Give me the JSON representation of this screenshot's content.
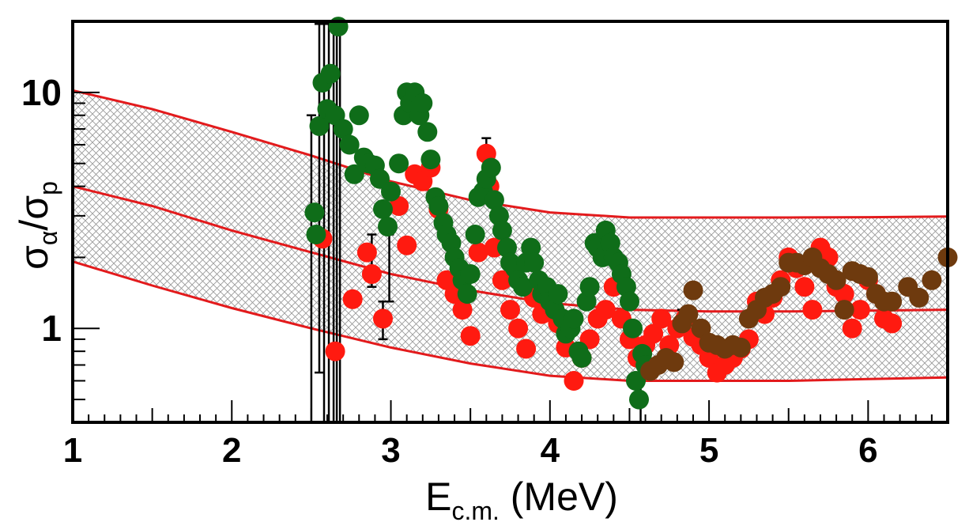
{
  "chart_data": {
    "type": "scatter",
    "xlabel": "E",
    "xlabel_subscript": "c.m.",
    "xlabel_unit": " (MeV)",
    "ylabel_symbol": "σ",
    "ylabel_num_sub": "α",
    "ylabel_slash": "/",
    "ylabel_den_sub": "p",
    "xlim": [
      1,
      6.5
    ],
    "ylim": [
      0.4,
      20
    ],
    "yscale": "log",
    "x_ticks": [
      1,
      2,
      3,
      4,
      5,
      6
    ],
    "x_tick_labels": [
      "1",
      "2",
      "3",
      "4",
      "5",
      "6"
    ],
    "y_ticks": [
      1,
      10
    ],
    "y_tick_labels": [
      "1",
      "10"
    ],
    "grid": false,
    "band": {
      "color": "#e31a1c",
      "x": [
        1.0,
        1.5,
        2.0,
        2.5,
        3.0,
        3.5,
        4.0,
        4.5,
        5.0,
        5.5,
        6.0,
        6.5
      ],
      "lower": [
        1.92,
        1.52,
        1.22,
        1.0,
        0.83,
        0.71,
        0.63,
        0.6,
        0.6,
        0.6,
        0.61,
        0.62
      ],
      "central": [
        4.0,
        3.3,
        2.6,
        2.1,
        1.7,
        1.45,
        1.28,
        1.2,
        1.18,
        1.18,
        1.19,
        1.2
      ],
      "upper": [
        10.2,
        8.5,
        6.8,
        5.4,
        4.2,
        3.5,
        3.1,
        2.95,
        2.95,
        2.95,
        2.96,
        2.98
      ]
    },
    "series": [
      {
        "name": "red data",
        "color": "#ff1a10",
        "x": [
          2.57,
          2.65,
          2.76,
          2.85,
          2.88,
          2.95,
          3.05,
          3.1,
          3.15,
          3.2,
          3.25,
          3.3,
          3.35,
          3.4,
          3.45,
          3.5,
          3.55,
          3.6,
          3.62,
          3.65,
          3.7,
          3.75,
          3.8,
          3.85,
          3.9,
          3.95,
          4.0,
          4.05,
          4.1,
          4.15,
          4.2,
          4.25,
          4.3,
          4.35,
          4.4,
          4.45,
          4.5,
          4.55,
          4.6,
          4.65,
          4.7,
          4.75,
          4.8,
          4.85,
          4.9,
          4.95,
          5.0,
          5.05,
          5.1,
          5.15,
          5.2,
          5.25,
          5.3,
          5.35,
          5.4,
          5.45,
          5.5,
          5.55,
          5.6,
          5.65,
          5.7,
          5.75,
          5.8,
          5.85,
          5.9,
          5.95,
          6.0,
          6.05,
          6.1,
          6.15
        ],
        "y": [
          2.4,
          0.8,
          1.33,
          2.1,
          1.7,
          1.1,
          3.3,
          2.25,
          4.5,
          4.2,
          4.8,
          3.2,
          1.6,
          1.4,
          1.2,
          0.93,
          2.1,
          5.5,
          4.0,
          2.2,
          1.6,
          1.2,
          1.0,
          0.82,
          1.35,
          1.15,
          1.3,
          1.05,
          0.83,
          0.6,
          0.75,
          0.9,
          1.1,
          1.2,
          1.5,
          1.1,
          0.9,
          0.75,
          0.85,
          0.95,
          1.1,
          0.85,
          1.0,
          1.1,
          0.92,
          0.85,
          0.75,
          0.65,
          0.7,
          0.75,
          0.82,
          0.9,
          1.3,
          1.15,
          1.35,
          1.6,
          2.0,
          1.8,
          1.5,
          1.2,
          2.2,
          2.0,
          1.5,
          1.4,
          1.0,
          1.2,
          1.6,
          1.4,
          1.1,
          1.05
        ]
      },
      {
        "name": "green data",
        "color": "#0f6d19",
        "x": [
          2.52,
          2.53,
          2.55,
          2.57,
          2.6,
          2.62,
          2.65,
          2.67,
          2.7,
          2.74,
          2.77,
          2.8,
          2.83,
          2.86,
          2.9,
          2.93,
          2.95,
          2.98,
          3.0,
          3.05,
          3.08,
          3.1,
          3.12,
          3.15,
          3.18,
          3.2,
          3.23,
          3.25,
          3.28,
          3.3,
          3.33,
          3.35,
          3.38,
          3.4,
          3.43,
          3.45,
          3.48,
          3.5,
          3.53,
          3.55,
          3.58,
          3.6,
          3.63,
          3.65,
          3.68,
          3.7,
          3.73,
          3.75,
          3.78,
          3.8,
          3.83,
          3.85,
          3.88,
          3.9,
          3.93,
          3.95,
          3.98,
          4.0,
          4.03,
          4.05,
          4.08,
          4.1,
          4.13,
          4.15,
          4.18,
          4.2,
          4.23,
          4.25,
          4.28,
          4.3,
          4.33,
          4.35,
          4.38,
          4.4,
          4.43,
          4.45,
          4.48,
          4.5,
          4.52,
          4.54,
          4.56,
          4.58,
          4.6
        ],
        "y": [
          3.1,
          2.5,
          7.2,
          11.0,
          8.5,
          12.0,
          8.0,
          19.0,
          7.0,
          6.0,
          4.5,
          8.0,
          5.3,
          5.0,
          4.9,
          4.3,
          3.2,
          2.7,
          3.8,
          5.0,
          8.0,
          10.0,
          9.0,
          10.0,
          8.0,
          9.0,
          6.8,
          5.2,
          3.6,
          3.3,
          2.8,
          2.5,
          2.3,
          2.0,
          1.8,
          1.6,
          1.4,
          1.7,
          2.5,
          3.6,
          3.8,
          4.3,
          4.8,
          3.5,
          3.0,
          2.6,
          2.2,
          1.9,
          1.8,
          1.6,
          1.5,
          1.9,
          2.2,
          1.9,
          1.6,
          1.4,
          1.5,
          1.3,
          1.2,
          1.4,
          1.1,
          0.95,
          1.0,
          1.1,
          0.8,
          0.75,
          1.3,
          1.5,
          2.3,
          2.2,
          2.0,
          2.6,
          2.3,
          2.0,
          1.9,
          1.7,
          1.5,
          1.3,
          1.0,
          0.6,
          0.5,
          0.78,
          0.7
        ]
      },
      {
        "name": "brown data",
        "color": "#6e3a0e",
        "x": [
          4.63,
          4.68,
          4.73,
          4.78,
          4.83,
          4.87,
          4.9,
          4.95,
          5.0,
          5.05,
          5.1,
          5.15,
          5.2,
          5.25,
          5.3,
          5.35,
          5.4,
          5.45,
          5.5,
          5.55,
          5.6,
          5.65,
          5.7,
          5.75,
          5.8,
          5.85,
          5.9,
          5.95,
          6.0,
          6.05,
          6.1,
          6.15,
          6.25,
          6.32,
          6.4,
          6.5
        ],
        "y": [
          0.66,
          0.7,
          0.75,
          0.72,
          1.05,
          1.15,
          1.45,
          1.0,
          0.87,
          0.85,
          0.82,
          0.85,
          0.83,
          1.1,
          1.2,
          1.35,
          1.4,
          1.5,
          1.9,
          1.9,
          1.85,
          2.0,
          1.8,
          1.7,
          1.6,
          1.2,
          1.75,
          1.7,
          1.65,
          1.4,
          1.3,
          1.3,
          1.5,
          1.35,
          1.6,
          2.0
        ]
      }
    ],
    "error_bars": [
      {
        "series": "black",
        "x": 2.5,
        "low": 0.4,
        "high": 8.0
      },
      {
        "series": "black",
        "x": 2.55,
        "low": 0.65,
        "high": 19.5
      },
      {
        "series": "black",
        "x": 2.58,
        "low": 0.4,
        "high": 19.5
      },
      {
        "series": "black",
        "x": 2.61,
        "low": 0.4,
        "high": 19.5
      },
      {
        "series": "black",
        "x": 2.64,
        "low": 0.4,
        "high": 19.5
      },
      {
        "series": "black",
        "x": 2.66,
        "low": 0.4,
        "high": 19.5
      },
      {
        "series": "black",
        "x": 2.68,
        "low": 0.4,
        "high": 19.5
      },
      {
        "series": "black",
        "x": 2.88,
        "low": 1.5,
        "high": 2.5
      },
      {
        "series": "black",
        "x": 2.95,
        "low": 0.9,
        "high": 1.3
      },
      {
        "series": "black",
        "x": 2.99,
        "low": 1.3,
        "high": 2.5
      },
      {
        "series": "black",
        "x": 3.6,
        "low": 4.6,
        "high": 6.4
      },
      {
        "series": "black",
        "x": 4.57,
        "low": 0.3,
        "high": 0.72
      },
      {
        "series": "black",
        "x": 4.83,
        "low": 0.95,
        "high": 1.2
      }
    ]
  }
}
